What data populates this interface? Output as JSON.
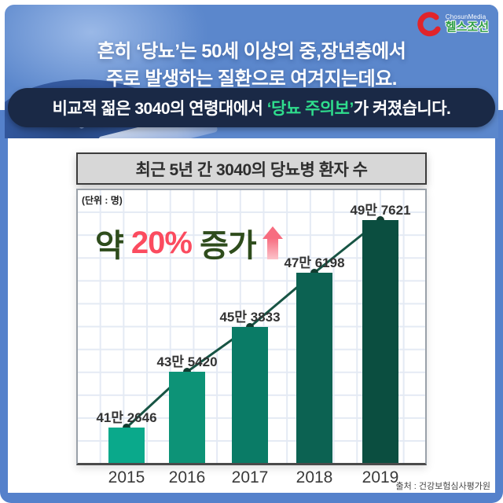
{
  "brand": {
    "logo_media": "ChosunMedia",
    "logo_name": "헬스조선"
  },
  "header": {
    "line1": "흔히 ‘당뇨’는 50세 이상의 중,장년층에서",
    "line2": "주로 발생하는 질환으로 여겨지는데요.",
    "banner_pre": "비교적 젊은 3040의 연령대에서 ",
    "banner_highlight": "‘당뇨 주의보’",
    "banner_post": "가 켜졌습니다."
  },
  "chart": {
    "title": "최근 5년 간 3040의 당뇨병 환자 수",
    "unit_label": "(단위 : 명)",
    "annotation_prefix": "약 ",
    "annotation_value": "20%",
    "annotation_suffix": " 증가",
    "source": "출처 : 건강보험심사평가원"
  },
  "chart_data": {
    "type": "bar",
    "title": "최근 5년 간 3040의 당뇨병 환자 수",
    "unit": "명",
    "categories": [
      "2015",
      "2016",
      "2017",
      "2018",
      "2019"
    ],
    "values": [
      412646,
      435420,
      453833,
      476198,
      497621
    ],
    "value_labels": [
      "41만 2646",
      "43만 5420",
      "45만 3833",
      "47만 6198",
      "49만 7621"
    ],
    "series": [
      {
        "name": "3040 당뇨병 환자 수",
        "values": [
          412646,
          435420,
          453833,
          476198,
          497621
        ]
      }
    ],
    "annotation": "약 20% 증가",
    "bar_colors": [
      "#0aa98b",
      "#0d9377",
      "#0a7b66",
      "#0c6252",
      "#0b4e40"
    ],
    "line_color": "#175444",
    "dot_color": "#123c30",
    "axis_truncated": true,
    "grid": true,
    "legend_position": "none"
  },
  "colors": {
    "frame_blue": "#5581cb",
    "header_blue": "#5b87cc",
    "banner_navy": "#1a2946",
    "banner_highlight_green": "#2fdd8d",
    "annotation_green": "#2e4c1c",
    "annotation_red": "#fb4b5f",
    "logo_green": "#2f9e45",
    "logo_red": "#e1242a"
  }
}
